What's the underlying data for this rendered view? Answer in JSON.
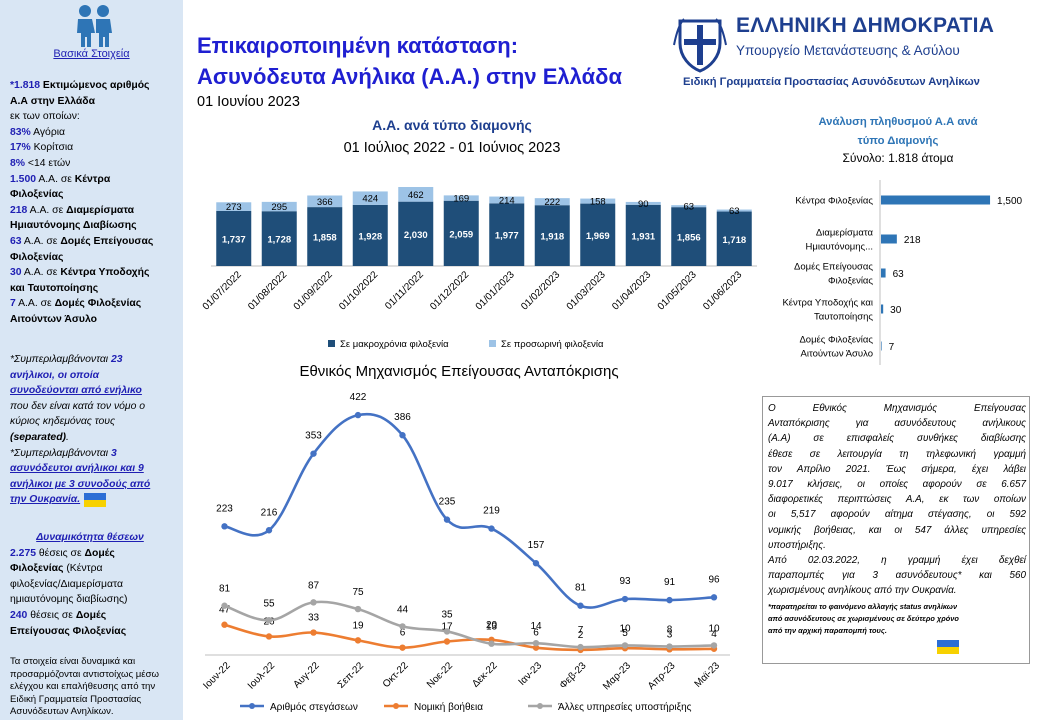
{
  "header": {
    "title_line1": "Επικαιροποιημένη κατάσταση:",
    "title_line2": "Ασυνόδευτα Ανήλικα (Α.Α.) στην Ελλάδα",
    "date": "01 Ιουνίου 2023"
  },
  "gov": {
    "name": "ΕΛΛΗΝΙΚΗ ΔΗΜΟΚΡΑΤΙΑ",
    "ministry": "Υπουργείο Μετανάστευσης & Ασύλου",
    "secretariat": "Ειδική Γραμματεία Προστασίας Ασυνόδευτων Ανηλίκων"
  },
  "sidebar": {
    "title": "Βασικά Στοιχεία",
    "p1": {
      "l1a": "*1.818",
      "l1b": " Εκτιμώμενος αριθμός",
      "l2": "Α.Α στην Ελλάδα",
      "l3": "εκ των οποίων:",
      "l4a": "83%",
      "l4b": " Αγόρια",
      "l5a": "17%",
      "l5b": " Κορίτσια",
      "l6a": "8%",
      "l6b": " <14 ετών",
      "l7a": "1.500",
      "l7b": " Α.Α. σε ",
      "l7c": "Κέντρα",
      "l8": "Φιλοξενίας",
      "l9a": "218",
      "l9b": " Α.Α. σε ",
      "l9c": "Διαμερίσματα",
      "l10": "Ημιαυτόνομης Διαβίωσης",
      "l11a": "63",
      "l11b": " Α.Α. σε ",
      "l11c": "Δομές Επείγουσας",
      "l12": "Φιλοξενίας",
      "l13a": "30",
      "l13b": " Α.Α. σε ",
      "l13c": "Κέντρα Υποδοχής",
      "l14": "και Ταυτοποίησης",
      "l15a": "7",
      "l15b": " Α.Α. σε ",
      "l15c": "Δομές Φιλοξενίας",
      "l16": "Αιτούντων Άσυλο"
    },
    "p2": {
      "l1a": "*Συμπεριλαμβάνονται ",
      "l1b": "23",
      "l2": "ανήλικοι, οι οποία",
      "l3": "συνοδεύονται από ενήλικο",
      "l4": "που δεν είναι κατά τον νόμο ο",
      "l5": "κύριος κηδεμόνας τους",
      "l6a": "(separated)",
      "l6b": ".",
      "l7a": "*Συμπεριλαμβάνονται ",
      "l7b": "3",
      "l8": "ασυνόδευτοι ανήλικοι και 9",
      "l9": "ανήλικοι με 3 συνοδούς από",
      "l10": "την Ουκρανία."
    },
    "p3": {
      "title": "Δυναμικότητα θέσεων",
      "l1a": "2.275",
      "l1b": " θέσεις σε ",
      "l1c": "Δομές",
      "l2a": "Φιλοξενίας",
      "l2b": " (Κέντρα",
      "l3": "φιλοξενίας/Διαμερίσματα",
      "l4": "ημιαυτόνομης διαβίωσης)",
      "l5a": "240",
      "l5b": " θέσεις σε ",
      "l5c": "Δομές",
      "l6": "Επείγουσας Φιλοξενίας"
    },
    "p4": {
      "l1": "Τα στοιχεία είναι δυναμικά και",
      "l2": "προσαρμόζονται αντιστοίχως μέσω",
      "l3": "ελέγχου και επαλήθευσης από την",
      "l4": "Ειδική Γραμματεία Προστασίας",
      "l5": "Ασυνόδευτων Ανηλίκων."
    }
  },
  "hotline_box": {
    "lines": [
      "Ο Εθνικός Μηχανισμός Επείγουσας",
      "Ανταπόκρισης για ασυνόδευτους ανήλικους",
      "(Α.Α) σε επισφαλείς συνθήκες διαβίωσης",
      "έθεσε σε λειτουργία τη τηλεφωνική γραμμή",
      "τον Απρίλιο 2021. Έως σήμερα, έχει λάβει",
      "9.017 κλήσεις, οι οποίες αφορούν σε 6.657",
      "διαφορετικές περιπτώσεις Α.Α, εκ των οποίων",
      "οι 5,517 αφορούν αίτημα στέγασης, οι 592",
      "νομικής βοήθειας, και οι 547 άλλες υπηρεσίες",
      "υποστήριξης.",
      "Από 02.03.2022, η γραμμή έχει δεχθεί",
      "παραπομπές για 3 ασυνόδευτους* και 560",
      "χωρισμένους ανηλίκους από την Ουκρανία."
    ],
    "footnote_lines": [
      "*παρατηρείται το φαινόμενο αλλαγής status ανηλίκων",
      "από ασυνόδευτους σε χωρισμένους σε δεύτερο χρόνο",
      "από την αρχική παραπομπή τους."
    ]
  },
  "colors": {
    "dark_blue": "#1f4e79",
    "light_blue": "#9dc3e6",
    "hbar": "#2e75b6",
    "orange": "#ed7d31",
    "grey": "#a5a5a5",
    "line_blue": "#4472c4",
    "title_blue": "#1f1fd1"
  },
  "chart_data": [
    {
      "type": "bar",
      "stacked": true,
      "title": "Α.Α. ανά τύπο διαμονής",
      "subtitle": "01 Ιούλιος 2022 - 01 Ιούνιος 2023",
      "categories": [
        "01/07/2022",
        "01/08/2022",
        "01/09/2022",
        "01/10/2022",
        "01/11/2022",
        "01/12/2022",
        "01/01/2023",
        "01/02/2023",
        "01/03/2023",
        "01/04/2023",
        "01/05/2023",
        "01/06/2023"
      ],
      "series": [
        {
          "name": "Σε μακροχρόνια φιλοξενία",
          "values": [
            1737,
            1728,
            1858,
            1928,
            2030,
            2059,
            1977,
            1918,
            1969,
            1931,
            1856,
            1718
          ],
          "labels": [
            "1,737",
            "1,728",
            "1,858",
            "1,928",
            "2,030",
            "2,059",
            "1,977",
            "1,918",
            "1,969",
            "1,931",
            "1,856",
            "1,718"
          ]
        },
        {
          "name": "Σε προσωρινή φιλοξενία",
          "values": [
            273,
            295,
            366,
            424,
            462,
            169,
            214,
            222,
            158,
            90,
            63,
            63
          ],
          "labels": [
            "273",
            "295",
            "366",
            "424",
            "462",
            "169",
            "214",
            "222",
            "158",
            "90",
            "63",
            "63"
          ]
        }
      ],
      "legend": "bottom"
    },
    {
      "type": "bar",
      "orientation": "horizontal",
      "title": "Ανάλυση πληθυσμού Α.Α ανά τύπο Διαμονής",
      "subtitle": "Σύνολο: 1.818 άτομα",
      "categories": [
        [
          "Κέντρα Φιλοξενίας"
        ],
        [
          "Διαμερίσματα",
          "Ημιαυτόνομης..."
        ],
        [
          "Δομές Επείγουσας",
          "Φιλοξενίας"
        ],
        [
          "Κέντρα Υποδοχής και",
          "Ταυτοποίησης"
        ],
        [
          "Δομές Φιλοξενίας",
          "Αιτούντων Άσυλο"
        ]
      ],
      "values": [
        1500,
        218,
        63,
        30,
        7
      ],
      "labels": [
        "1,500",
        "218",
        "63",
        "30",
        "7"
      ]
    },
    {
      "type": "line",
      "title": "Εθνικός Μηχανισμός Επείγουσας Ανταπόκρισης",
      "categories": [
        "Ιουν-22",
        "Ιουλ-22",
        "Αυγ-22",
        "Σεπ-22",
        "Οκτ-22",
        "Νοε-22",
        "Δεκ-22",
        "Ιαν-23",
        "Φεβ-23",
        "Μαρ-23",
        "Απρ-23",
        "Μαϊ-23"
      ],
      "series": [
        {
          "name": "Αριθμός στεγάσεων",
          "values": [
            223,
            216,
            353,
            422,
            386,
            235,
            219,
            157,
            81,
            93,
            91,
            96
          ]
        },
        {
          "name": "Νομική βοήθεια",
          "values": [
            47,
            26,
            33,
            19,
            6,
            17,
            20,
            6,
            2,
            5,
            3,
            4
          ]
        },
        {
          "name": "Άλλες υπηρεσίες υποστήριξης",
          "values": [
            81,
            55,
            87,
            75,
            44,
            35,
            13,
            14,
            7,
            10,
            8,
            10
          ]
        }
      ],
      "legend": "bottom"
    }
  ]
}
